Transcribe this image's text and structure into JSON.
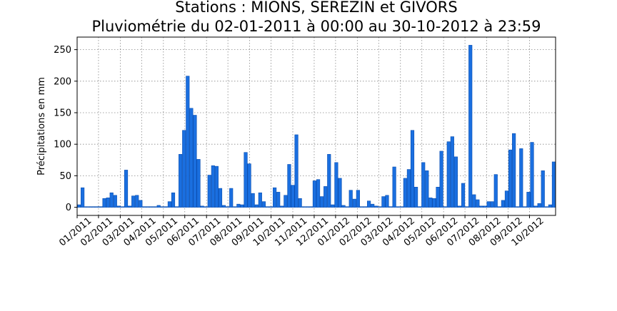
{
  "chart_data": {
    "type": "bar",
    "title": [
      "Stations : MIONS, SEREZIN et GIVORS",
      "Pluviométrie du 02-01-2011 à 00:00 au 30-10-2012 à 23:59"
    ],
    "y_label": "Précipitations en mm",
    "color": "#1a6fe0",
    "edgecolor": "#0b4fb0",
    "categories": [
      null,
      null,
      null,
      null,
      null,
      null,
      null,
      null,
      null,
      null,
      null,
      null,
      null,
      null,
      null,
      null,
      null,
      null,
      null,
      null,
      null,
      null,
      null,
      null,
      null,
      null,
      null,
      null,
      null,
      null,
      null,
      null,
      null,
      null,
      null,
      null,
      null,
      null,
      null,
      null,
      null,
      null,
      null,
      null,
      null,
      null,
      null,
      null,
      null,
      null,
      null,
      null,
      null,
      null,
      null,
      null,
      null,
      null,
      null,
      null,
      null,
      null,
      null,
      null,
      null,
      null,
      null,
      null,
      null,
      null,
      null,
      null,
      null,
      null,
      null,
      null,
      null,
      null,
      null,
      null,
      null,
      null,
      null,
      null,
      null,
      null,
      null,
      null,
      null,
      null,
      null,
      null,
      null,
      null,
      null,
      null,
      null,
      null,
      null,
      null,
      null,
      null,
      null,
      null,
      null,
      null,
      null,
      null,
      null,
      null,
      null,
      null,
      null,
      null,
      null,
      null,
      null,
      null,
      null,
      null,
      null,
      null,
      null,
      null,
      null,
      null,
      null,
      null,
      null,
      null,
      null,
      null
    ],
    "values": [
      4,
      31,
      1,
      1,
      1,
      1,
      1,
      14,
      15,
      23,
      19,
      2,
      1,
      59,
      2,
      18,
      19,
      11,
      1,
      1,
      1,
      1,
      3,
      1,
      1,
      9,
      23,
      1,
      84,
      122,
      208,
      157,
      146,
      76,
      2,
      1,
      51,
      66,
      65,
      30,
      3,
      1,
      30,
      1,
      5,
      4,
      87,
      69,
      22,
      4,
      23,
      9,
      1,
      1,
      31,
      24,
      2,
      19,
      68,
      35,
      115,
      14,
      1,
      1,
      1,
      42,
      44,
      17,
      33,
      84,
      4,
      71,
      46,
      3,
      1,
      27,
      13,
      27,
      1,
      1,
      10,
      5,
      2,
      1,
      17,
      19,
      1,
      64,
      1,
      1,
      46,
      60,
      122,
      32,
      1,
      71,
      58,
      15,
      14,
      32,
      89,
      1,
      104,
      112,
      80,
      2,
      38,
      1,
      257,
      20,
      12,
      2,
      2,
      9,
      9,
      52,
      1,
      11,
      26,
      91,
      117,
      1,
      93,
      1,
      24,
      103,
      2,
      6,
      58,
      1,
      4,
      72
    ],
    "xticks": [
      {
        "value": 0,
        "label": "01/2011"
      },
      {
        "value": 5.9,
        "label": "02/2011"
      },
      {
        "value": 11.9,
        "label": "03/2011"
      },
      {
        "value": 17.8,
        "label": "04/2011"
      },
      {
        "value": 23.8,
        "label": "05/2011"
      },
      {
        "value": 29.7,
        "label": "06/2011"
      },
      {
        "value": 35.7,
        "label": "07/2011"
      },
      {
        "value": 41.6,
        "label": "08/2011"
      },
      {
        "value": 47.6,
        "label": "09/2011"
      },
      {
        "value": 53.5,
        "label": "10/2011"
      },
      {
        "value": 59.5,
        "label": "11/2011"
      },
      {
        "value": 65.4,
        "label": "12/2011"
      },
      {
        "value": 71.3,
        "label": "01/2012"
      },
      {
        "value": 77.3,
        "label": "02/2012"
      },
      {
        "value": 83.2,
        "label": "03/2012"
      },
      {
        "value": 89.2,
        "label": "04/2012"
      },
      {
        "value": 95.1,
        "label": "05/2012"
      },
      {
        "value": 101.1,
        "label": "06/2012"
      },
      {
        "value": 107.0,
        "label": "07/2012"
      },
      {
        "value": 113.0,
        "label": "08/2012"
      },
      {
        "value": 118.9,
        "label": "09/2012"
      },
      {
        "value": 124.8,
        "label": "10/2012"
      }
    ],
    "ylim": [
      -12.9,
      269.9
    ],
    "yticks": [
      0,
      50,
      100,
      150,
      200,
      250
    ],
    "grid": true
  }
}
